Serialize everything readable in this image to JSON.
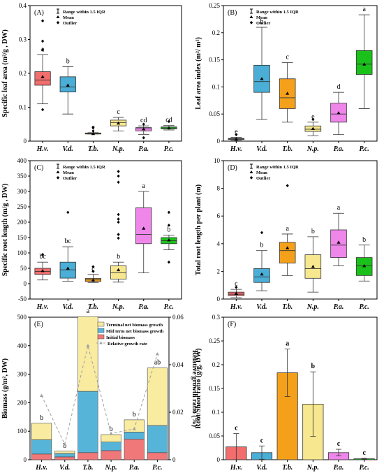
{
  "chart_data": [
    {
      "type": "box",
      "panel": "(A)",
      "ylabel": "Specific leaf area (m²/g , DW)",
      "ylim": [
        0,
        0.4
      ],
      "yticks": [
        0,
        0.1,
        0.2,
        0.3,
        0.4
      ],
      "legend": [
        "Range within 1.5 IQR",
        "Mean",
        "Outlier"
      ],
      "categories": [
        "H.v.",
        "V.d.",
        "T.b.",
        "N.p.",
        "P.a.",
        "P.c."
      ],
      "colors": [
        "#f26d6d",
        "#4aaed6",
        "#f5a01a",
        "#f7e88f",
        "#ef86ea",
        "#1bc11b"
      ],
      "boxes": [
        {
          "min": 0.11,
          "q1": 0.165,
          "median": 0.18,
          "q3": 0.205,
          "max": 0.255,
          "mean": 0.19,
          "outliers": [
            0.093,
            0.27,
            0.295,
            0.355
          ]
        },
        {
          "min": 0.08,
          "q1": 0.145,
          "median": 0.16,
          "q3": 0.19,
          "max": 0.22,
          "mean": 0.165,
          "outliers": []
        },
        {
          "min": 0.021,
          "q1": 0.021,
          "median": 0.022,
          "q3": 0.024,
          "max": 0.025,
          "mean": 0.022,
          "outliers": [
            0.03,
            0.04
          ]
        },
        {
          "min": 0.03,
          "q1": 0.045,
          "median": 0.055,
          "q3": 0.062,
          "max": 0.07,
          "mean": 0.053,
          "outliers": []
        },
        {
          "min": 0.02,
          "q1": 0.03,
          "median": 0.036,
          "q3": 0.04,
          "max": 0.045,
          "mean": 0.036,
          "outliers": [
            0.01,
            0.05
          ]
        },
        {
          "min": 0.033,
          "q1": 0.036,
          "median": 0.039,
          "q3": 0.042,
          "max": 0.046,
          "mean": 0.039,
          "outliers": [
            0.058
          ]
        }
      ],
      "letters": [
        "a",
        "b",
        "c",
        "c",
        "cd",
        "cd"
      ]
    },
    {
      "type": "box",
      "panel": "(B)",
      "ylabel": "Leaf area index (m²/ m²)",
      "ylim": [
        0,
        0.25
      ],
      "yticks": [
        0,
        0.05,
        0.1,
        0.15,
        0.2,
        0.25
      ],
      "legend": [
        "Range within 1.5 IQR",
        "Mean",
        "Outlier"
      ],
      "categories": [
        "H.v.",
        "V.d.",
        "T.b.",
        "N.p.",
        "P.a.",
        "P.c."
      ],
      "colors": [
        "#f26d6d",
        "#4aaed6",
        "#f5a01a",
        "#f7e88f",
        "#ef86ea",
        "#1bc11b"
      ],
      "boxes": [
        {
          "min": 0.001,
          "q1": 0.003,
          "median": 0.004,
          "q3": 0.005,
          "max": 0.007,
          "mean": 0.004,
          "outliers": [
            0.012
          ]
        },
        {
          "min": 0.04,
          "q1": 0.09,
          "median": 0.11,
          "q3": 0.14,
          "max": 0.21,
          "mean": 0.115,
          "outliers": []
        },
        {
          "min": 0.035,
          "q1": 0.06,
          "median": 0.08,
          "q3": 0.115,
          "max": 0.145,
          "mean": 0.088,
          "outliers": []
        },
        {
          "min": 0.01,
          "q1": 0.018,
          "median": 0.022,
          "q3": 0.028,
          "max": 0.035,
          "mean": 0.023,
          "outliers": [
            0.04
          ]
        },
        {
          "min": 0.012,
          "q1": 0.035,
          "median": 0.05,
          "q3": 0.07,
          "max": 0.09,
          "mean": 0.052,
          "outliers": []
        },
        {
          "min": 0.06,
          "q1": 0.123,
          "median": 0.142,
          "q3": 0.167,
          "max": 0.233,
          "mean": 0.142,
          "outliers": []
        }
      ],
      "letters": [
        "e",
        "b",
        "c",
        "e",
        "d",
        "a"
      ]
    },
    {
      "type": "box",
      "panel": "(C)",
      "ylabel": "Specific root length (m/g , DW)",
      "ylim": [
        -50,
        400
      ],
      "yticks": [
        -50,
        0,
        50,
        100,
        150,
        200,
        250,
        300,
        350,
        400
      ],
      "legend": [
        "Range within 1.5 IQR",
        "Mean",
        "Outlier"
      ],
      "categories": [
        "H.v.",
        "V.d.",
        "T.b.",
        "N.p.",
        "P.a.",
        "P.c."
      ],
      "colors": [
        "#f26d6d",
        "#4aaed6",
        "#f5a01a",
        "#f7e88f",
        "#ef86ea",
        "#1bc11b"
      ],
      "boxes": [
        {
          "min": 12,
          "q1": 30,
          "median": 40,
          "q3": 50,
          "max": 70,
          "mean": 42,
          "outliers": [
            95
          ]
        },
        {
          "min": 8,
          "q1": 18,
          "median": 45,
          "q3": 70,
          "max": 120,
          "mean": 50,
          "outliers": [
            232
          ]
        },
        {
          "min": 4,
          "q1": 7,
          "median": 12,
          "q3": 17,
          "max": 30,
          "mean": 12,
          "outliers": [
            40,
            55
          ]
        },
        {
          "min": 5,
          "q1": 15,
          "median": 35,
          "q3": 58,
          "max": 70,
          "mean": 45,
          "outliers": [
            148,
            160,
            200,
            210,
            225,
            330,
            350,
            365
          ]
        },
        {
          "min": 35,
          "q1": 130,
          "median": 160,
          "q3": 247,
          "max": 300,
          "mean": 180,
          "outliers": []
        },
        {
          "min": 110,
          "q1": 130,
          "median": 140,
          "q3": 150,
          "max": 158,
          "mean": 142,
          "outliers": [
            70,
            190,
            232
          ]
        }
      ],
      "letters": [
        "bc",
        "bc",
        "c",
        "b",
        "a",
        "b"
      ]
    },
    {
      "type": "box",
      "panel": "(D)",
      "ylabel": "Total root length per plant (m)",
      "ylim": [
        0,
        10
      ],
      "yticks": [
        0,
        2,
        4,
        6,
        8,
        10
      ],
      "legend": [
        "Range within 1.5 IQR",
        "Mean",
        "Outlier"
      ],
      "categories": [
        "H.v.",
        "V.d.",
        "T.b.",
        "N.p.",
        "P.a.",
        "P.c."
      ],
      "colors": [
        "#f26d6d",
        "#4aaed6",
        "#f5a01a",
        "#f7e88f",
        "#ef86ea",
        "#1bc11b"
      ],
      "boxes": [
        {
          "min": 0.1,
          "q1": 0.25,
          "median": 0.35,
          "q3": 0.5,
          "max": 0.7,
          "mean": 0.4,
          "outliers": [
            0.85
          ]
        },
        {
          "min": 0.6,
          "q1": 1.2,
          "median": 1.6,
          "q3": 2.2,
          "max": 3.5,
          "mean": 1.8,
          "outliers": [
            4.8
          ]
        },
        {
          "min": 1.7,
          "q1": 2.6,
          "median": 3.5,
          "q3": 4.1,
          "max": 4.7,
          "mean": 3.7,
          "outliers": [
            8.2
          ]
        },
        {
          "min": 0.5,
          "q1": 1.5,
          "median": 2.2,
          "q3": 3.2,
          "max": 4.5,
          "mean": 2.35,
          "outliers": []
        },
        {
          "min": 2.4,
          "q1": 3.0,
          "median": 3.9,
          "q3": 5.0,
          "max": 6.2,
          "mean": 4.1,
          "outliers": []
        },
        {
          "min": 1.3,
          "q1": 1.7,
          "median": 2.4,
          "q3": 3.0,
          "max": 3.9,
          "mean": 2.4,
          "outliers": []
        }
      ],
      "letters": [
        "c",
        "b",
        "a",
        "b",
        "a",
        "b"
      ]
    },
    {
      "type": "stacked-bar+line",
      "panel": "(E)",
      "ylabel": "Biomass (g/m², DW)",
      "y2label": "Relative growth ratio (%)",
      "ylim": [
        0,
        500
      ],
      "yticks": [
        0,
        100,
        200,
        300,
        400,
        500
      ],
      "y2lim": [
        0,
        0.06
      ],
      "y2ticks": [
        0,
        0.02,
        0.04,
        0.06
      ],
      "categories": [
        "H.v.",
        "V.d.",
        "T.b.",
        "N.p.",
        "P.a.",
        "P.c."
      ],
      "series": [
        {
          "name": "Initial biomass",
          "color": "#f07878",
          "values": [
            20,
            10,
            25,
            32,
            72,
            25
          ]
        },
        {
          "name": "Mid term net biomass growth",
          "color": "#56b4d8",
          "values": [
            50,
            12,
            215,
            30,
            25,
            95
          ]
        },
        {
          "name": "Terminal net biomass growth",
          "color": "#f9eca0",
          "values": [
            58,
            8,
            262,
            26,
            43,
            202
          ]
        }
      ],
      "totals": [
        128,
        30,
        502,
        88,
        140,
        322
      ],
      "errors": [
        0,
        0,
        0,
        0,
        0,
        0
      ],
      "line": {
        "name": "Relative growth rate",
        "color": "#a0a0a0",
        "values": [
          0.027,
          0.0065,
          0.048,
          0.011,
          0.013,
          0.0445
        ]
      },
      "letters": [
        "b",
        "b",
        "a",
        "b",
        "b",
        "ab"
      ]
    },
    {
      "type": "bar",
      "panel": "(F)",
      "ylabel": "Root/Shoot ratio (g/g, DW)",
      "ylim": [
        0,
        0.3
      ],
      "yticks": [
        0,
        0.05,
        0.1,
        0.15,
        0.2,
        0.25,
        0.3
      ],
      "categories": [
        "H.v.",
        "V.d.",
        "T.b.",
        "N.p.",
        "P.a.",
        "P.c."
      ],
      "colors": [
        "#f26d6d",
        "#4aaed6",
        "#f5a01a",
        "#f7e88f",
        "#ef86ea",
        "#1bc11b"
      ],
      "values": [
        0.027,
        0.015,
        0.183,
        0.117,
        0.015,
        0.002
      ],
      "errors": [
        0.028,
        0.014,
        0.05,
        0.068,
        0.007,
        0.001
      ],
      "letters": [
        "c",
        "c",
        "a",
        "b",
        "c",
        "c"
      ]
    }
  ]
}
